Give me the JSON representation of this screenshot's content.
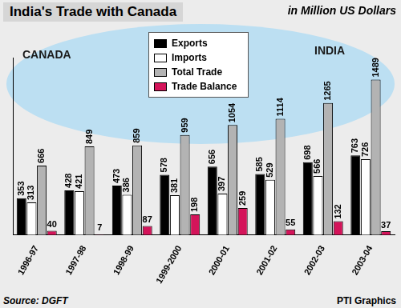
{
  "chart_data": {
    "type": "bar",
    "title": "India's Trade with Canada",
    "subtitle": "in Million US Dollars",
    "annotations": [
      "CANADA",
      "INDIA"
    ],
    "source": "Source: DGFT",
    "credit": "PTI Graphics",
    "categories": [
      "1996-97",
      "1997-98",
      "1998-99",
      "1999-2000",
      "2000-01",
      "2001-02",
      "2002-03",
      "2003-04"
    ],
    "series": [
      {
        "name": "Exports",
        "color": "#000000",
        "values": [
          353,
          428,
          473,
          578,
          656,
          585,
          698,
          763
        ]
      },
      {
        "name": "Imports",
        "color": "#ffffff",
        "values": [
          313,
          421,
          386,
          381,
          397,
          529,
          566,
          726
        ]
      },
      {
        "name": "Total Trade",
        "color": "#b3b3b3",
        "values": [
          666,
          849,
          859,
          959,
          1054,
          1114,
          1265,
          1489
        ]
      },
      {
        "name": "Trade Balance",
        "color": "#d4145a",
        "values": [
          40,
          7,
          87,
          198,
          259,
          55,
          132,
          37
        ]
      }
    ],
    "ylim": [
      0,
      1700
    ],
    "grid": false,
    "legend": "top",
    "data_labels": true,
    "tick_labels": "x"
  }
}
